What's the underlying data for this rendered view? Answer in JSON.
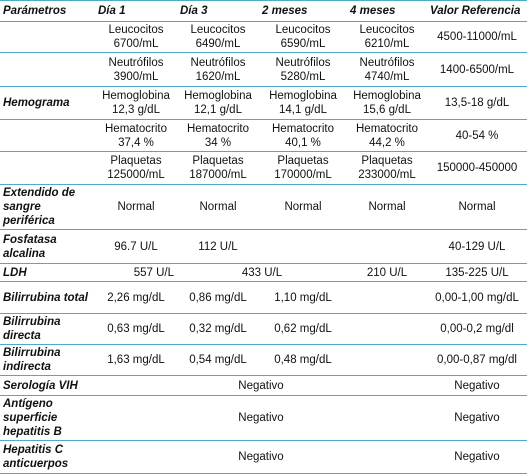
{
  "table": {
    "header": [
      "Parámetros",
      "Día 1",
      "Día 3",
      "2 meses",
      "4 meses",
      "Valor Referencia"
    ],
    "rows": [
      [
        "Leucocitos 6700/mL",
        "Leucocitos 6490/mL",
        "Leucocitos 6590/mL",
        "Leucocitos 6210/mL",
        "4500-11000/mL"
      ],
      [
        "Neutrófilos 3900/mL",
        "Neutrófilos 1620/mL",
        "Neutrófilos 5280/mL",
        "Neutrófilos 4740/mL",
        "1400-6500/mL"
      ],
      [
        "Hemograma",
        "Hemoglobina 12,3 g/dL",
        "Hemoglobina 12,1 g/dL",
        "Hemoglobina 14,1 g/dL",
        "Hemoglobina 15,6 g/dL",
        "13,5-18 g/dL"
      ],
      [
        "Hematocrito 37,4 %",
        "Hematocrito 34 %",
        "Hematocrito 40,1 %",
        "Hematocrito 44,2 %",
        "40-54 %"
      ],
      [
        "Plaquetas 125000/mL",
        "Plaquetas 187000/mL",
        "Plaquetas 170000/mL",
        "Plaquetas 233000/mL",
        "150000-450000"
      ],
      [
        "Extendido de sangre periférica",
        "Normal",
        "Normal",
        "Normal",
        "Normal",
        "Normal"
      ],
      [
        "Fosfatasa alcalina",
        "96.7 U/L",
        "112 U/L",
        "40-129 U/L"
      ],
      [
        "LDH",
        "557 U/L",
        "433 U/L",
        "210 U/L",
        "135-225 U/L"
      ],
      [
        "Bilirrubina total",
        "2,26 mg/dL",
        "0,86 mg/dL",
        "1,10 mg/dL",
        "0,00-1,00 mg/dL"
      ],
      [
        "Bilirrubina directa",
        "0,63 mg/dL",
        "0,32 mg/dL",
        "0,62 mg/dL",
        "0,00-0,2 mg/dl"
      ],
      [
        "Bilirrubina indirecta",
        "1,63 mg/dL",
        "0,54 mg/dL",
        "0,48 mg/dL",
        "0,00-0,87 mg/dl"
      ],
      [
        "Serología VIH",
        "Negativo",
        "Negativo"
      ],
      [
        "Antígeno superficie hepatitis B",
        "Negativo",
        "Negativo"
      ],
      [
        "Hepatitis C anticuerpos",
        "Negativo",
        "Negativo"
      ]
    ]
  }
}
